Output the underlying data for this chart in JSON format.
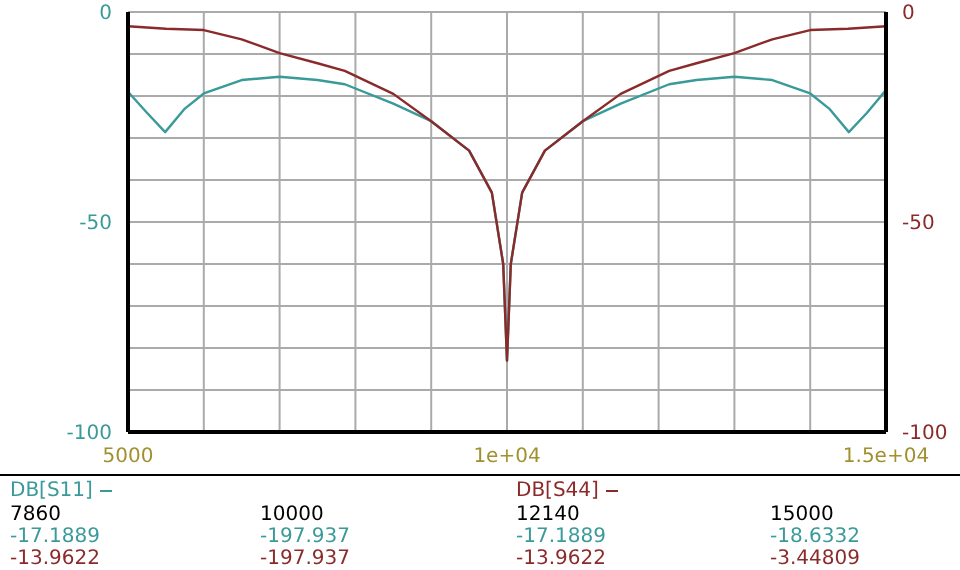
{
  "chart_data": {
    "type": "line",
    "series": [
      {
        "name": "DB[S11]",
        "color": "#3a9a9a",
        "x": [
          5000,
          5250,
          5490,
          5750,
          6000,
          6500,
          7000,
          7500,
          7860,
          8500,
          9000,
          9500,
          9800,
          9950,
          10000,
          10050,
          10200,
          10500,
          11000,
          11500,
          12140,
          12500,
          13000,
          13500,
          14000,
          14250,
          14510,
          14750,
          15000
        ],
        "values": [
          -19,
          -24,
          -28.6,
          -23,
          -19.4,
          -16.2,
          -15.4,
          -16.2,
          -17.2,
          -21.8,
          -26,
          -33,
          -43,
          -60,
          -83,
          -60,
          -43,
          -33,
          -26,
          -21.8,
          -17.2,
          -16.2,
          -15.4,
          -16.2,
          -19.4,
          -23,
          -28.6,
          -24,
          -18.6
        ]
      },
      {
        "name": "DB[S44]",
        "color": "#8b2a2a",
        "axis": "y2",
        "x": [
          5000,
          5500,
          6000,
          6500,
          7000,
          7500,
          7860,
          8500,
          9000,
          9500,
          9800,
          9950,
          10000,
          10050,
          10200,
          10500,
          11000,
          11500,
          12140,
          12500,
          13000,
          13500,
          14000,
          14500,
          15000
        ],
        "values": [
          -3.4,
          -4,
          -4.3,
          -6.5,
          -9.8,
          -12.2,
          -14,
          -19.5,
          -26,
          -33,
          -43,
          -60,
          -83,
          -60,
          -43,
          -33,
          -26,
          -19.5,
          -14,
          -12.2,
          -9.8,
          -6.5,
          -4.3,
          -4,
          -3.4
        ]
      }
    ],
    "xlim": [
      5000,
      15000
    ],
    "xticks": [
      5000,
      {
        "value": 6000,
        "label": null
      },
      {
        "value": 7000,
        "label": null
      },
      {
        "value": 8000,
        "label": null
      },
      {
        "value": 9000,
        "label": null
      },
      {
        "value": 10000,
        "label": "1e+04"
      },
      {
        "value": 11000,
        "label": null
      },
      {
        "value": 12000,
        "label": null
      },
      {
        "value": 13000,
        "label": null
      },
      {
        "value": 14000,
        "label": null
      },
      {
        "value": 15000,
        "label": "1.5e+04"
      }
    ],
    "ylim": [
      -100,
      0
    ],
    "yticks": [
      -100,
      {
        "value": -90,
        "label": null
      },
      {
        "value": -80,
        "label": null
      },
      {
        "value": -70,
        "label": null
      },
      {
        "value": -60,
        "label": null
      },
      -50,
      {
        "value": -40,
        "label": null
      },
      {
        "value": -30,
        "label": null
      },
      {
        "value": -20,
        "label": null
      },
      {
        "value": -10,
        "label": null
      },
      0
    ],
    "y2lim": [
      -100,
      0
    ],
    "y2ticks": [
      -100,
      -50,
      0
    ],
    "grid": true,
    "legend": "bottom",
    "annotations": [
      "7860",
      "10000",
      "12140",
      "15000",
      "-17.1889",
      "-197.937",
      "-17.1889",
      "-18.6332",
      "-13.9622",
      "-197.937",
      "-13.9622",
      "-3.44809"
    ]
  }
}
